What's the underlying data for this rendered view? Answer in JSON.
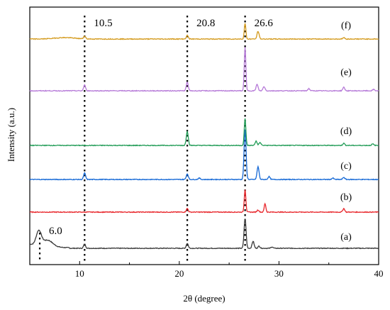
{
  "chart_data": {
    "type": "line",
    "xlabel": "2θ (degree)",
    "ylabel": "Intensity (a.u.)",
    "xlim": [
      5,
      40
    ],
    "x_ticks": [
      10,
      20,
      30,
      40
    ],
    "grid": false,
    "legend": "none",
    "reference_lines": [
      {
        "x": 6.0,
        "label": "6.0",
        "from_series": "(a)",
        "to_series": "(a)"
      },
      {
        "x": 10.5,
        "label": "10.5",
        "from_series": "(a)",
        "to_series": "(f)"
      },
      {
        "x": 20.8,
        "label": "20.8",
        "from_series": "(a)",
        "to_series": "(f)"
      },
      {
        "x": 26.6,
        "label": "26.6",
        "from_series": "(a)",
        "to_series": "(f)"
      }
    ],
    "series": [
      {
        "name": "(a)",
        "color": "#3a3a3a",
        "peaks": [
          [
            5.9,
            20,
            0.25
          ],
          [
            6.8,
            9,
            0.5
          ],
          [
            10.5,
            6,
            0.1
          ],
          [
            20.8,
            7,
            0.1
          ],
          [
            26.6,
            42,
            0.1
          ],
          [
            27.4,
            10,
            0.1
          ],
          [
            28.0,
            3,
            0.1
          ],
          [
            29.3,
            2,
            0.1
          ]
        ]
      },
      {
        "name": "(b)",
        "color": "#e8262b",
        "peaks": [
          [
            20.8,
            5,
            0.1
          ],
          [
            26.6,
            32,
            0.08
          ],
          [
            27.9,
            3,
            0.1
          ],
          [
            28.6,
            12,
            0.08
          ],
          [
            36.5,
            5,
            0.1
          ]
        ]
      },
      {
        "name": "(c)",
        "color": "#1468d6",
        "peaks": [
          [
            10.5,
            9,
            0.1
          ],
          [
            20.8,
            8,
            0.1
          ],
          [
            22.0,
            2,
            0.1
          ],
          [
            26.6,
            70,
            0.1
          ],
          [
            27.9,
            18,
            0.1
          ],
          [
            29.0,
            4,
            0.1
          ],
          [
            35.4,
            2,
            0.1
          ],
          [
            36.5,
            3,
            0.1
          ]
        ]
      },
      {
        "name": "(d)",
        "color": "#1f9b55",
        "peaks": [
          [
            20.8,
            20,
            0.1
          ],
          [
            26.6,
            38,
            0.08
          ],
          [
            27.7,
            6,
            0.1
          ],
          [
            28.1,
            4,
            0.1
          ],
          [
            36.5,
            3,
            0.1
          ],
          [
            39.4,
            2,
            0.1
          ]
        ]
      },
      {
        "name": "(e)",
        "color": "#b67ad8",
        "peaks": [
          [
            10.5,
            8,
            0.1
          ],
          [
            20.8,
            12,
            0.1
          ],
          [
            26.6,
            62,
            0.08
          ],
          [
            27.8,
            9,
            0.1
          ],
          [
            28.5,
            6,
            0.1
          ],
          [
            33.0,
            3,
            0.1
          ],
          [
            36.5,
            5,
            0.1
          ],
          [
            39.5,
            2,
            0.1
          ]
        ]
      },
      {
        "name": "(f)",
        "color": "#d49a1c",
        "peaks": [
          [
            8.5,
            2,
            1.0
          ],
          [
            10.5,
            4,
            0.1
          ],
          [
            20.8,
            5,
            0.1
          ],
          [
            26.6,
            22,
            0.08
          ],
          [
            27.9,
            11,
            0.1
          ],
          [
            36.5,
            2,
            0.1
          ]
        ]
      }
    ]
  }
}
